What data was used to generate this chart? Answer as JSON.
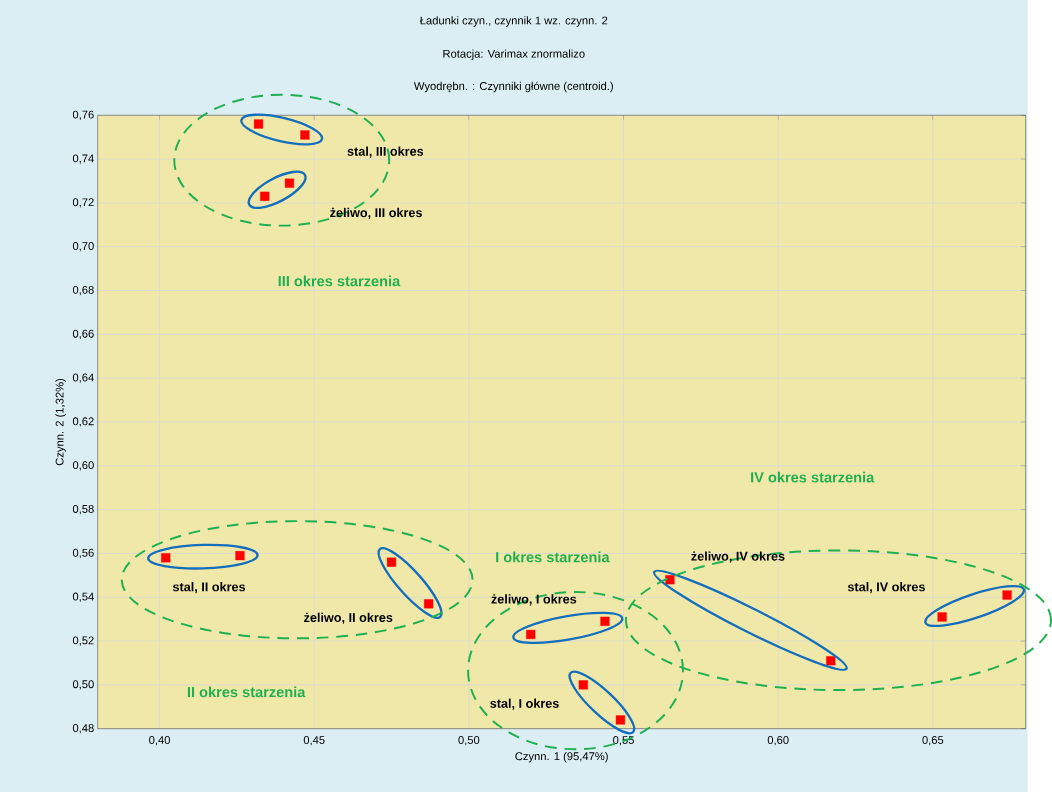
{
  "chart_data": {
    "type": "scatter",
    "title": "Ładunki czyn., czynnik  1 wz. czynn. 2",
    "subtitle": "Rotacja: Varimax znormalizo",
    "xlabel": "Czynn. 1 (95,47%)",
    "ylabel": "Czynn. 2 (1,32%)",
    "x": [
      0.432,
      0.447,
      0.434,
      0.442,
      0.402,
      0.426,
      0.475,
      0.487,
      0.52,
      0.544,
      0.537,
      0.549,
      0.565,
      0.617,
      0.653,
      0.674
    ],
    "series": [
      {
        "color": "#ff0000",
        "values": [
          0.756,
          0.751,
          0.723,
          0.729,
          0.558,
          0.559,
          0.556,
          0.537,
          0.523,
          0.529,
          0.5,
          0.484,
          0.548,
          0.511,
          0.531,
          0.541
        ]
      }
    ],
    "marker": "square",
    "grid": true,
    "xlim": [
      0.38,
      0.68
    ],
    "ylim": [
      0.48,
      0.76
    ],
    "xticks": [
      {
        "value": 0.4,
        "label": "0,40"
      },
      {
        "value": 0.45,
        "label": "0,45"
      },
      {
        "value": 0.5,
        "label": "0,50"
      },
      {
        "value": 0.55,
        "label": "0,55"
      },
      {
        "value": 0.6,
        "label": "0,60"
      },
      {
        "value": 0.65,
        "label": "0,65"
      }
    ],
    "yticks": [
      {
        "value": 0.48,
        "label": "0,48"
      },
      {
        "value": 0.5,
        "label": "0,50"
      },
      {
        "value": 0.52,
        "label": "0,52"
      },
      {
        "value": 0.54,
        "label": "0,54"
      },
      {
        "value": 0.56,
        "label": "0,56"
      },
      {
        "value": 0.58,
        "label": "0,58"
      },
      {
        "value": 0.6,
        "label": "0,60"
      },
      {
        "value": 0.62,
        "label": "0,62"
      },
      {
        "value": 0.64,
        "label": "0,64"
      },
      {
        "value": 0.66,
        "label": "0,66"
      },
      {
        "value": 0.68,
        "label": "0,68"
      },
      {
        "value": 0.7,
        "label": "0,70"
      },
      {
        "value": 0.72,
        "label": "0,72"
      },
      {
        "value": 0.74,
        "label": "0,74"
      },
      {
        "value": 0.76,
        "label": "0,76"
      }
    ],
    "annotations": [
      "stal, III okres",
      "żeliwo, III okres",
      "III okres starzenia",
      "stal, II okres",
      "żeliwo, II okres",
      "II okres starzenia",
      "żeliwo, I okres",
      "stal, I okres",
      "I okres starzenia",
      "żeliwo, IV okres",
      "stal, IV okres",
      "IV okres starzenia",
      "Wyodrębn. : Czynniki główne (centroid.)"
    ]
  }
}
